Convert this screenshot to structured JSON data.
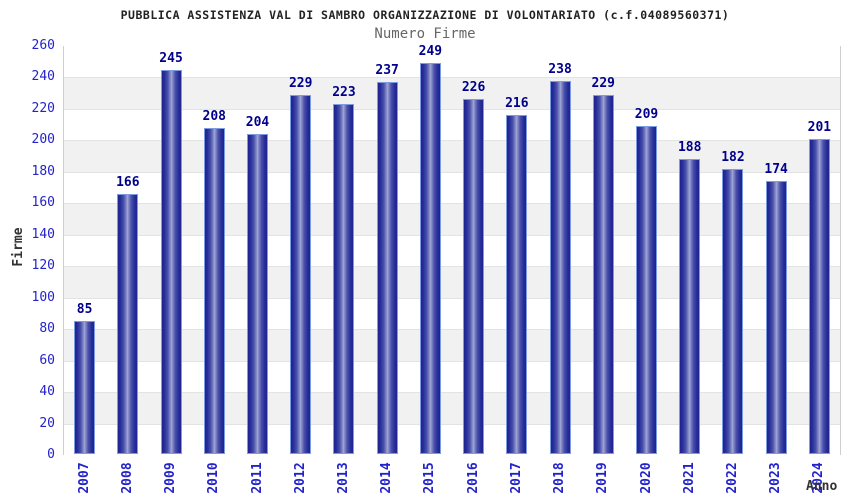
{
  "header": {
    "title": "PUBBLICA ASSISTENZA VAL DI SAMBRO ORGANIZZAZIONE DI VOLONTARIATO (c.f.04089560371)",
    "subtitle": "Numero Firme"
  },
  "chart_data": {
    "type": "bar",
    "title": "Numero Firme",
    "categories": [
      "2007",
      "2008",
      "2009",
      "2010",
      "2011",
      "2012",
      "2013",
      "2014",
      "2015",
      "2016",
      "2017",
      "2018",
      "2019",
      "2020",
      "2021",
      "2022",
      "2023",
      "2024"
    ],
    "values": [
      85,
      166,
      245,
      208,
      204,
      229,
      223,
      237,
      249,
      226,
      216,
      238,
      229,
      209,
      188,
      182,
      174,
      201
    ],
    "xlabel": "Anno",
    "ylabel": "Firme",
    "ylim": [
      0,
      260
    ],
    "ytick_step": 20,
    "grid": "horizontal-bands-alternating",
    "legend_position": "none",
    "bar_labels_shown": true,
    "x_tick_rotation_deg": 90
  },
  "colors": {
    "tick_label_blue": "#2323cc",
    "value_label_navy": "#00008b",
    "bar_border_light_blue": "#7d9be0",
    "bar_edge_dark": "#1d238f",
    "bar_center_light": "#a4aad6",
    "band_gray": "#f1f1f1",
    "band_white": "#ffffff",
    "gridline": "#e3e3e3",
    "plot_border": "#cfcfcf",
    "title_color": "#222222",
    "subtitle_color": "#666666",
    "axis_title_color": "#333333"
  }
}
